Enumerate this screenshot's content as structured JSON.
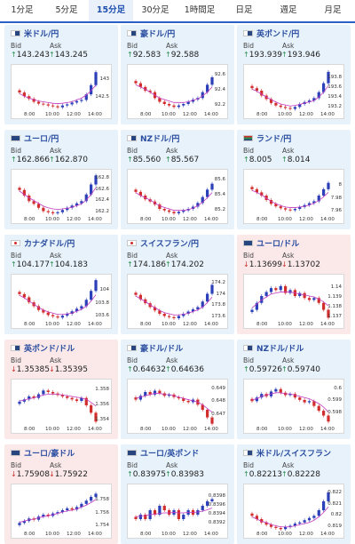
{
  "tabs": [
    {
      "label": "1分足",
      "active": false
    },
    {
      "label": "5分足",
      "active": false
    },
    {
      "label": "15分足",
      "active": true
    },
    {
      "label": "30分足",
      "active": false
    },
    {
      "label": "1時間足",
      "active": false
    },
    {
      "label": "日足",
      "active": false
    },
    {
      "label": "週足",
      "active": false
    },
    {
      "label": "月足",
      "active": false
    }
  ],
  "labels": {
    "bid": "Bid",
    "ask": "Ask"
  },
  "x_ticks": [
    "8:00",
    "10:00",
    "12:00",
    "14:00"
  ],
  "colors": {
    "up_candle": "#2a3fb8",
    "down_candle": "#d22d2d",
    "ma_line": "#c23ac0"
  },
  "cards": [
    {
      "pair": "米ドル/円",
      "flag": "us-flag-icon",
      "trend": "up",
      "bid": "143.243",
      "ask": "143.245",
      "y_ticks": [
        "143",
        "142.5"
      ],
      "chart_data": {
        "type": "candlestick",
        "ylim": [
          142.1,
          143.3
        ],
        "close": [
          142.65,
          142.55,
          142.48,
          142.4,
          142.35,
          142.33,
          142.3,
          142.28,
          142.25,
          142.3,
          142.33,
          142.38,
          142.42,
          142.45,
          142.6,
          142.85,
          143.2
        ],
        "ma": [
          142.62,
          142.55,
          142.5,
          142.46,
          142.42,
          142.4,
          142.38,
          142.36,
          142.35,
          142.36,
          142.38,
          142.4,
          142.45,
          142.5,
          142.58,
          142.7,
          142.85
        ]
      }
    },
    {
      "pair": "豪ドル/円",
      "flag": "au-flag-icon",
      "trend": "up",
      "bid": "92.583",
      "ask": "92.588",
      "y_ticks": [
        "92.6",
        "92.4",
        "92.2"
      ],
      "chart_data": {
        "type": "candlestick",
        "ylim": [
          92.1,
          92.7
        ],
        "close": [
          92.5,
          92.45,
          92.4,
          92.38,
          92.3,
          92.25,
          92.22,
          92.2,
          92.18,
          92.2,
          92.22,
          92.25,
          92.28,
          92.3,
          92.38,
          92.48,
          92.58
        ],
        "ma": [
          92.48,
          92.45,
          92.42,
          92.38,
          92.34,
          92.3,
          92.28,
          92.26,
          92.24,
          92.24,
          92.24,
          92.25,
          92.27,
          92.29,
          92.33,
          92.38,
          92.45
        ]
      }
    },
    {
      "pair": "英ポンド/円",
      "flag": "gb-flag-icon",
      "trend": "up",
      "bid": "193.939",
      "ask": "193.946",
      "y_ticks": [
        "193.8",
        "193.6",
        "193.4",
        "193.2"
      ],
      "chart_data": {
        "type": "candlestick",
        "ylim": [
          193.1,
          194.0
        ],
        "close": [
          193.6,
          193.55,
          193.45,
          193.38,
          193.3,
          193.25,
          193.22,
          193.2,
          193.18,
          193.22,
          193.28,
          193.32,
          193.35,
          193.4,
          193.52,
          193.7,
          193.93
        ],
        "ma": [
          193.58,
          193.54,
          193.48,
          193.42,
          193.37,
          193.32,
          193.28,
          193.26,
          193.24,
          193.25,
          193.27,
          193.3,
          193.32,
          193.35,
          193.42,
          193.52,
          193.65
        ]
      }
    },
    {
      "pair": "ユーロ/円",
      "flag": "eu-flag-icon",
      "trend": "up",
      "bid": "162.866",
      "ask": "162.870",
      "y_ticks": [
        "162.8",
        "162.6",
        "162.4",
        "162.2"
      ],
      "chart_data": {
        "type": "candlestick",
        "ylim": [
          162.1,
          162.9
        ],
        "close": [
          162.6,
          162.5,
          162.4,
          162.35,
          162.28,
          162.22,
          162.2,
          162.18,
          162.2,
          162.24,
          162.28,
          162.32,
          162.36,
          162.4,
          162.52,
          162.7,
          162.86
        ],
        "ma": [
          162.58,
          162.52,
          162.46,
          162.41,
          162.36,
          162.31,
          162.28,
          162.26,
          162.25,
          162.26,
          162.27,
          162.29,
          162.32,
          162.35,
          162.42,
          162.52,
          162.64
        ]
      }
    },
    {
      "pair": "NZドル/円",
      "flag": "nz-flag-icon",
      "trend": "up",
      "bid": "85.560",
      "ask": "85.567",
      "y_ticks": [
        "85.6",
        "85.4",
        "85.2"
      ],
      "chart_data": {
        "type": "candlestick",
        "ylim": [
          85.1,
          85.7
        ],
        "close": [
          85.45,
          85.4,
          85.35,
          85.32,
          85.28,
          85.22,
          85.2,
          85.18,
          85.16,
          85.18,
          85.2,
          85.22,
          85.25,
          85.3,
          85.38,
          85.48,
          85.56
        ],
        "ma": [
          85.44,
          85.4,
          85.37,
          85.34,
          85.3,
          85.26,
          85.24,
          85.22,
          85.2,
          85.2,
          85.2,
          85.21,
          85.23,
          85.26,
          85.31,
          85.37,
          85.44
        ]
      }
    },
    {
      "pair": "ランド/円",
      "flag": "za-flag-icon",
      "trend": "up",
      "bid": "8.005",
      "ask": "8.014",
      "y_ticks": [
        "8",
        "7.98",
        "7.96"
      ],
      "chart_data": {
        "type": "candlestick",
        "ylim": [
          7.95,
          8.02
        ],
        "close": [
          7.995,
          7.99,
          7.985,
          7.978,
          7.972,
          7.968,
          7.965,
          7.963,
          7.962,
          7.964,
          7.967,
          7.97,
          7.973,
          7.976,
          7.985,
          7.995,
          8.005
        ],
        "ma": [
          7.993,
          7.99,
          7.986,
          7.981,
          7.976,
          7.972,
          7.969,
          7.967,
          7.966,
          7.966,
          7.967,
          7.968,
          7.97,
          7.973,
          7.977,
          7.983,
          7.99
        ]
      }
    },
    {
      "pair": "カナダドル/円",
      "flag": "ca-flag-icon",
      "trend": "up",
      "bid": "104.177",
      "ask": "104.183",
      "y_ticks": [
        "104",
        "103.8",
        "103.6"
      ],
      "chart_data": {
        "type": "candlestick",
        "ylim": [
          103.5,
          104.2
        ],
        "close": [
          103.95,
          103.9,
          103.82,
          103.76,
          103.7,
          103.66,
          103.62,
          103.6,
          103.58,
          103.61,
          103.64,
          103.68,
          103.72,
          103.76,
          103.86,
          104.0,
          104.17
        ],
        "ma": [
          103.93,
          103.89,
          103.84,
          103.79,
          103.74,
          103.7,
          103.67,
          103.65,
          103.63,
          103.63,
          103.64,
          103.65,
          103.68,
          103.71,
          103.76,
          103.84,
          103.94
        ]
      }
    },
    {
      "pair": "スイスフラン/円",
      "flag": "ch-flag-icon",
      "trend": "up",
      "bid": "174.186",
      "ask": "174.202",
      "y_ticks": [
        "174.2",
        "174",
        "173.8",
        "173.6"
      ],
      "chart_data": {
        "type": "candlestick",
        "ylim": [
          173.5,
          174.3
        ],
        "close": [
          174.0,
          173.92,
          173.85,
          173.78,
          173.72,
          173.66,
          173.62,
          173.6,
          173.58,
          173.62,
          173.66,
          173.7,
          173.74,
          173.78,
          173.88,
          174.02,
          174.18
        ],
        "ma": [
          173.98,
          173.93,
          173.88,
          173.82,
          173.77,
          173.72,
          173.68,
          173.66,
          173.64,
          173.64,
          173.65,
          173.67,
          173.7,
          173.73,
          173.78,
          173.86,
          173.96
        ]
      }
    },
    {
      "pair": "ユーロ/ドル",
      "flag": "eu-flag-icon",
      "trend": "down",
      "bid": "1.13699",
      "ask": "1.13702",
      "y_ticks": [
        "1.14",
        "1.139",
        "1.138",
        "1.137"
      ],
      "chart_data": {
        "type": "candlestick",
        "ylim": [
          1.1365,
          1.141
        ],
        "close": [
          1.1378,
          1.1385,
          1.1392,
          1.1396,
          1.14,
          1.1398,
          1.1402,
          1.1395,
          1.1398,
          1.1392,
          1.1395,
          1.139,
          1.1388,
          1.139,
          1.1385,
          1.1378,
          1.137
        ],
        "ma": [
          1.138,
          1.1384,
          1.1388,
          1.1391,
          1.1394,
          1.1395,
          1.1396,
          1.1396,
          1.1396,
          1.1395,
          1.1394,
          1.1393,
          1.1392,
          1.1391,
          1.1389,
          1.1386,
          1.1382
        ]
      }
    },
    {
      "pair": "英ポンド/ドル",
      "flag": "gb-flag-icon",
      "trend": "down",
      "bid": "1.35385",
      "ask": "1.35395",
      "y_ticks": [
        "1.358",
        "1.356",
        "1.354"
      ],
      "chart_data": {
        "type": "candlestick",
        "ylim": [
          1.353,
          1.359
        ],
        "close": [
          1.3565,
          1.3568,
          1.3572,
          1.357,
          1.3575,
          1.358,
          1.3578,
          1.3576,
          1.3574,
          1.3572,
          1.357,
          1.3568,
          1.3566,
          1.357,
          1.356,
          1.355,
          1.3538
        ],
        "ma": [
          1.3566,
          1.3567,
          1.3569,
          1.357,
          1.3572,
          1.3574,
          1.3575,
          1.3575,
          1.3575,
          1.3574,
          1.3573,
          1.3572,
          1.3571,
          1.357,
          1.3568,
          1.3564,
          1.3559
        ]
      }
    },
    {
      "pair": "豪ドル/ドル",
      "flag": "au-flag-icon",
      "trend": "up",
      "bid": "0.64632",
      "ask": "0.64636",
      "y_ticks": [
        "0.649",
        "0.648",
        "0.647"
      ],
      "chart_data": {
        "type": "candlestick",
        "ylim": [
          0.646,
          0.6495
        ],
        "close": [
          0.6482,
          0.6485,
          0.6488,
          0.6486,
          0.6489,
          0.6487,
          0.6485,
          0.6486,
          0.6484,
          0.6483,
          0.6481,
          0.648,
          0.6482,
          0.6478,
          0.6474,
          0.6468,
          0.6463
        ],
        "ma": [
          0.6483,
          0.6484,
          0.6485,
          0.6486,
          0.6487,
          0.6487,
          0.6486,
          0.6486,
          0.6485,
          0.6484,
          0.6483,
          0.6482,
          0.6481,
          0.648,
          0.6478,
          0.6475,
          0.6472
        ]
      }
    },
    {
      "pair": "NZドル/ドル",
      "flag": "nz-flag-icon",
      "trend": "up",
      "bid": "0.59726",
      "ask": "0.59740",
      "y_ticks": [
        "0.6",
        "0.599",
        "0.598"
      ],
      "chart_data": {
        "type": "candlestick",
        "ylim": [
          0.5968,
          0.6005
        ],
        "close": [
          0.599,
          0.5993,
          0.5996,
          0.5994,
          0.5998,
          0.6,
          0.5997,
          0.5995,
          0.5996,
          0.5993,
          0.5991,
          0.5989,
          0.599,
          0.5986,
          0.5982,
          0.5978,
          0.5973
        ],
        "ma": [
          0.5991,
          0.5992,
          0.5994,
          0.5995,
          0.5996,
          0.5997,
          0.5997,
          0.5996,
          0.5996,
          0.5995,
          0.5994,
          0.5993,
          0.5992,
          0.599,
          0.5988,
          0.5985,
          0.5981
        ]
      }
    },
    {
      "pair": "ユーロ/豪ドル",
      "flag": "eu-flag-icon",
      "trend": "down",
      "bid": "1.75908",
      "ask": "1.75922",
      "y_ticks": [
        "1.758",
        "1.756",
        "1.754"
      ],
      "chart_data": {
        "type": "candlestick",
        "ylim": [
          1.753,
          1.76
        ],
        "close": [
          1.7545,
          1.7548,
          1.7552,
          1.755,
          1.7555,
          1.7558,
          1.7556,
          1.756,
          1.7562,
          1.7565,
          1.7568,
          1.7566,
          1.757,
          1.7575,
          1.758,
          1.7586,
          1.7591
        ],
        "ma": [
          1.7546,
          1.7548,
          1.755,
          1.7551,
          1.7553,
          1.7555,
          1.7556,
          1.7558,
          1.756,
          1.7562,
          1.7564,
          1.7565,
          1.7567,
          1.757,
          1.7573,
          1.7577,
          1.7582
        ]
      }
    },
    {
      "pair": "ユーロ/英ポンド",
      "flag": "eu-flag-icon",
      "trend": "up",
      "bid": "0.83975",
      "ask": "0.83983",
      "y_ticks": [
        "0.8398",
        "0.8396",
        "0.8394",
        "0.8392"
      ],
      "chart_data": {
        "type": "candlestick",
        "ylim": [
          0.839,
          0.84
        ],
        "close": [
          0.8393,
          0.8394,
          0.8393,
          0.8395,
          0.8394,
          0.8396,
          0.8395,
          0.8394,
          0.8395,
          0.8393,
          0.8394,
          0.8395,
          0.8394,
          0.8395,
          0.8396,
          0.8397,
          0.83975
        ],
        "ma": [
          0.83935,
          0.83937,
          0.83938,
          0.8394,
          0.83941,
          0.83943,
          0.83944,
          0.83944,
          0.83945,
          0.83944,
          0.83944,
          0.83945,
          0.83945,
          0.83946,
          0.83948,
          0.83951,
          0.83955
        ]
      }
    },
    {
      "pair": "米ドル/スイスフラン",
      "flag": "us-flag-icon",
      "trend": "up",
      "bid": "0.82213",
      "ask": "0.82228",
      "y_ticks": [
        "0.822",
        "0.821",
        "0.82",
        "0.819"
      ],
      "chart_data": {
        "type": "candlestick",
        "ylim": [
          0.8185,
          0.8225
        ],
        "close": [
          0.82,
          0.8197,
          0.8194,
          0.8192,
          0.819,
          0.8189,
          0.8188,
          0.819,
          0.8191,
          0.8193,
          0.8194,
          0.8196,
          0.8198,
          0.82,
          0.8205,
          0.8213,
          0.8221
        ],
        "ma": [
          0.8199,
          0.8197,
          0.8195,
          0.8194,
          0.8192,
          0.8191,
          0.819,
          0.819,
          0.819,
          0.8191,
          0.8192,
          0.8193,
          0.8194,
          0.8196,
          0.8199,
          0.8203,
          0.8208
        ]
      }
    }
  ]
}
